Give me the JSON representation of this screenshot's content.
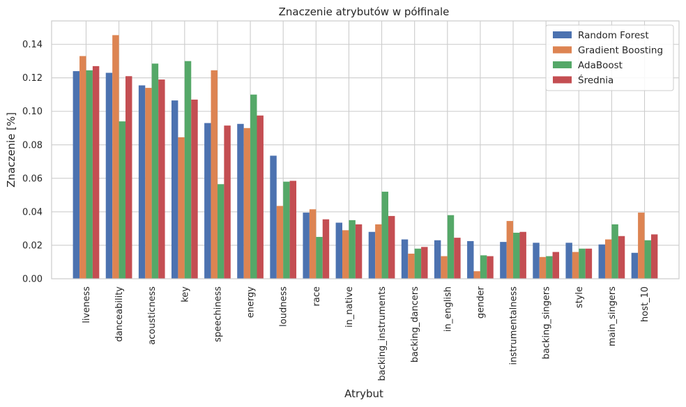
{
  "chart_data": {
    "type": "bar",
    "title": "Znaczenie atrybutów w półfinale",
    "xlabel": "Atrybut",
    "ylabel": "Znaczenie [%]",
    "ylim": [
      0,
      0.154
    ],
    "yticks": [
      0.0,
      0.02,
      0.04,
      0.06,
      0.08,
      0.1,
      0.12,
      0.14
    ],
    "ytick_labels": [
      "0.00",
      "0.02",
      "0.04",
      "0.06",
      "0.08",
      "0.10",
      "0.12",
      "0.14"
    ],
    "grid": true,
    "legend_position": "top-right",
    "categories": [
      "liveness",
      "danceability",
      "acousticness",
      "key",
      "speechiness",
      "energy",
      "loudness",
      "race",
      "in_native",
      "backing_instruments",
      "backing_dancers",
      "in_english",
      "gender",
      "instrumentalness",
      "backing_singers",
      "style",
      "main_singers",
      "host_10"
    ],
    "series": [
      {
        "name": "Random Forest",
        "color": "#4c72b0",
        "values": [
          0.124,
          0.123,
          0.1155,
          0.1065,
          0.093,
          0.0925,
          0.0735,
          0.0395,
          0.0335,
          0.028,
          0.0235,
          0.023,
          0.0225,
          0.022,
          0.0215,
          0.0215,
          0.0205,
          0.0155
        ]
      },
      {
        "name": "Gradient Boosting",
        "color": "#dd8452",
        "values": [
          0.133,
          0.1455,
          0.114,
          0.0845,
          0.1245,
          0.09,
          0.0435,
          0.0415,
          0.029,
          0.0325,
          0.015,
          0.0135,
          0.0045,
          0.0345,
          0.013,
          0.016,
          0.0235,
          0.0395
        ]
      },
      {
        "name": "AdaBoost",
        "color": "#55a868",
        "values": [
          0.1245,
          0.094,
          0.1285,
          0.13,
          0.0565,
          0.11,
          0.058,
          0.025,
          0.035,
          0.052,
          0.018,
          0.038,
          0.014,
          0.0275,
          0.0135,
          0.018,
          0.0325,
          0.023
        ]
      },
      {
        "name": "Średnia",
        "color": "#c44e52",
        "values": [
          0.127,
          0.121,
          0.119,
          0.107,
          0.0915,
          0.0975,
          0.0585,
          0.0355,
          0.0325,
          0.0375,
          0.019,
          0.0245,
          0.0135,
          0.028,
          0.016,
          0.018,
          0.0255,
          0.0265
        ]
      }
    ]
  }
}
